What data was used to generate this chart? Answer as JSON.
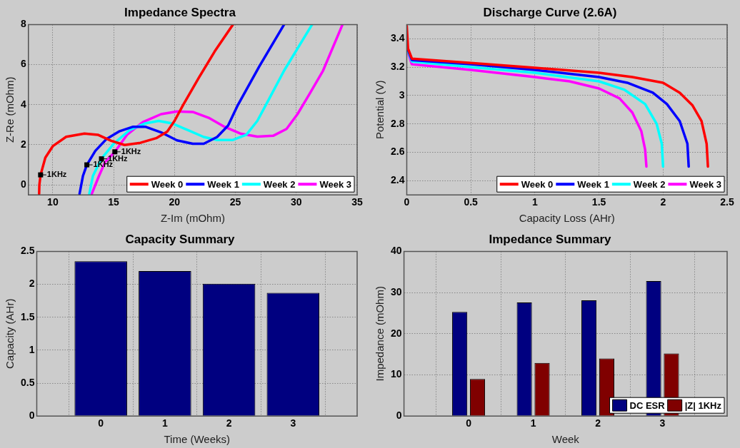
{
  "chart_data": [
    {
      "type": "line",
      "title": "Impedance Spectra",
      "xlabel": "Z-Im (mOhm)",
      "ylabel": "Z-Re (mOhm)",
      "xlim": [
        8,
        35
      ],
      "xticks": [
        10,
        15,
        20,
        25,
        30,
        35
      ],
      "ylim": [
        -0.5,
        8
      ],
      "yticks": [
        0,
        2,
        4,
        6,
        8
      ],
      "grid": true,
      "legend": "bottom right",
      "series": [
        {
          "name": "Week 0",
          "color": "#ff0000",
          "x": [
            8.88,
            8.9,
            9.0,
            9.39,
            10.0,
            11.1,
            12.6,
            13.7,
            14.8,
            15.9,
            17.2,
            18.5,
            19.4,
            20.0,
            20.7,
            22.0,
            23.3,
            24.8
          ],
          "values": [
            -0.45,
            0,
            0.5,
            1.36,
            1.93,
            2.4,
            2.56,
            2.5,
            2.2,
            1.99,
            2.1,
            2.33,
            2.66,
            3.19,
            3.98,
            5.35,
            6.66,
            8
          ]
        },
        {
          "name": "Week 1",
          "color": "#0000ff",
          "x": [
            12.2,
            12.48,
            12.8,
            13.5,
            14.4,
            15.5,
            16.6,
            17.6,
            18.9,
            20.2,
            21.5,
            22.4,
            23.5,
            24.4,
            25.2,
            26.97,
            29.0
          ],
          "values": [
            -0.45,
            0.45,
            1.0,
            1.7,
            2.28,
            2.68,
            2.9,
            2.9,
            2.62,
            2.22,
            2.05,
            2.05,
            2.39,
            2.96,
            3.98,
            5.92,
            8
          ]
        },
        {
          "name": "Week 2",
          "color": "#00ffff",
          "x": [
            13.0,
            13.3,
            14.0,
            15.0,
            16.3,
            17.6,
            18.7,
            19.8,
            21.1,
            22.4,
            23.5,
            24.8,
            25.9,
            26.8,
            27.7,
            29.0,
            31.3
          ],
          "values": [
            -0.45,
            0.45,
            1.31,
            2.05,
            2.73,
            3.07,
            3.19,
            3.07,
            2.73,
            2.39,
            2.24,
            2.24,
            2.5,
            3.19,
            4.21,
            5.7,
            8
          ]
        },
        {
          "name": "Week 3",
          "color": "#ff00ff",
          "x": [
            13.2,
            13.8,
            14.3,
            15.1,
            16.1,
            17.4,
            18.9,
            20.2,
            21.5,
            22.8,
            24.1,
            25.4,
            26.8,
            28.1,
            29.2,
            30.1,
            31.1,
            32.2,
            33.8
          ],
          "values": [
            -0.45,
            0.45,
            1.14,
            1.65,
            2.5,
            3.13,
            3.53,
            3.66,
            3.64,
            3.35,
            2.9,
            2.56,
            2.41,
            2.45,
            2.79,
            3.53,
            4.55,
            5.7,
            8
          ]
        }
      ],
      "annotations": [
        {
          "text": "1KHz",
          "x": 9.0,
          "y": 0.5
        },
        {
          "text": "1KHz",
          "x": 12.8,
          "y": 1.0
        },
        {
          "text": "1KHz",
          "x": 14.0,
          "y": 1.3
        },
        {
          "text": "1KHz",
          "x": 15.1,
          "y": 1.65
        }
      ]
    },
    {
      "type": "line",
      "title": "Discharge Curve (2.6A)",
      "xlabel": "Capacity Loss (AHr)",
      "ylabel": "Potential (V)",
      "xlim": [
        0,
        2.5
      ],
      "xticks": [
        0,
        0.5,
        1,
        1.5,
        2,
        2.5
      ],
      "ylim": [
        2.3,
        3.5
      ],
      "yticks": [
        2.4,
        2.6,
        2.8,
        3,
        3.2,
        3.4
      ],
      "grid": true,
      "legend": "bottom right",
      "series": [
        {
          "name": "Week 0",
          "color": "#ff0000",
          "x": [
            0,
            0.01,
            0.04,
            0.5,
            1.0,
            1.5,
            1.76,
            2.0,
            2.13,
            2.23,
            2.3,
            2.34,
            2.35
          ],
          "values": [
            3.49,
            3.33,
            3.26,
            3.23,
            3.195,
            3.16,
            3.13,
            3.09,
            3.02,
            2.93,
            2.82,
            2.66,
            2.5
          ]
        },
        {
          "name": "Week 1",
          "color": "#0000ff",
          "x": [
            0.01,
            0.04,
            0.5,
            1.0,
            1.5,
            1.72,
            1.92,
            2.03,
            2.13,
            2.19,
            2.2
          ],
          "values": [
            3.32,
            3.25,
            3.22,
            3.18,
            3.13,
            3.09,
            3.02,
            2.94,
            2.82,
            2.66,
            2.5
          ]
        },
        {
          "name": "Week 2",
          "color": "#00ffff",
          "x": [
            0.01,
            0.04,
            0.5,
            1.0,
            1.5,
            1.7,
            1.86,
            1.95,
            1.99,
            2.0
          ],
          "values": [
            3.31,
            3.24,
            3.2,
            3.16,
            3.1,
            3.04,
            2.94,
            2.8,
            2.66,
            2.5
          ]
        },
        {
          "name": "Week 3",
          "color": "#ff00ff",
          "x": [
            0.01,
            0.04,
            0.5,
            1.0,
            1.27,
            1.5,
            1.66,
            1.76,
            1.83,
            1.86,
            1.87
          ],
          "values": [
            3.3,
            3.22,
            3.18,
            3.13,
            3.1,
            3.05,
            2.98,
            2.88,
            2.75,
            2.62,
            2.5
          ]
        }
      ]
    },
    {
      "type": "bar",
      "title": "Capacity Summary",
      "xlabel": "Time (Weeks)",
      "ylabel": "Capacity (AHr)",
      "x": [
        0,
        1,
        2,
        3
      ],
      "xlim": [
        -1,
        4
      ],
      "xticks": [
        0,
        1,
        2,
        3
      ],
      "ylim": [
        0,
        2.5
      ],
      "yticks": [
        0,
        0.5,
        1,
        1.5,
        2,
        2.5
      ],
      "grid": true,
      "series": [
        {
          "color": "#000080",
          "values": [
            2.35,
            2.2,
            2.01,
            1.87
          ]
        }
      ]
    },
    {
      "type": "bar",
      "title": "Impedance Summary",
      "xlabel": "Week",
      "ylabel": "Impedance (mOhm)",
      "x": [
        0,
        1,
        2,
        3
      ],
      "xlim": [
        -1,
        4
      ],
      "xticks": [
        0,
        1,
        2,
        3
      ],
      "ylim": [
        0,
        40
      ],
      "yticks": [
        0,
        10,
        20,
        30,
        40
      ],
      "grid": true,
      "legend": "bottom right",
      "series": [
        {
          "name": "DC ESR",
          "color": "#000080",
          "values": [
            25.3,
            27.6,
            28.1,
            32.8
          ]
        },
        {
          "name": "|Z| 1KHz",
          "color": "#800000",
          "values": [
            9.0,
            12.9,
            14.0,
            15.2
          ]
        }
      ]
    }
  ]
}
